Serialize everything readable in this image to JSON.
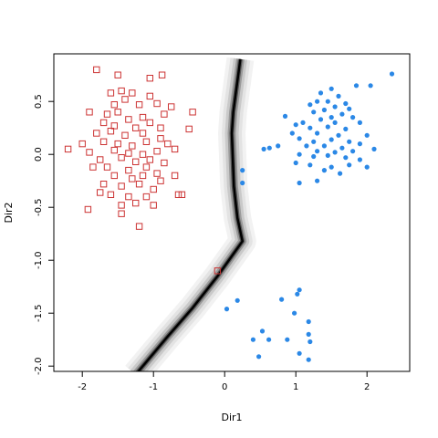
{
  "chart_data": {
    "type": "scatter",
    "xlabel": "Dir1",
    "ylabel": "Dir2",
    "xlim": [
      -2.4,
      2.6
    ],
    "ylim": [
      -2.05,
      0.95
    ],
    "x_ticks": [
      -2,
      -1,
      0,
      1,
      2
    ],
    "x_tick_labels": [
      "-2",
      "-1",
      "0",
      "1",
      "2"
    ],
    "y_ticks": [
      -2.0,
      -1.5,
      -1.0,
      -0.5,
      0.0,
      0.5
    ],
    "y_tick_labels": [
      "-2.0",
      "-1.5",
      "-1.0",
      "-0.5",
      "0.0",
      "0.5"
    ],
    "grid": false,
    "colors": {
      "class_a": "#cc3333",
      "class_b": "#2b88e6",
      "boundary": "#000000"
    },
    "boundary": [
      [
        0.22,
        0.9
      ],
      [
        0.12,
        0.4
      ],
      [
        0.1,
        0.2
      ],
      [
        0.13,
        -0.3
      ],
      [
        0.18,
        -0.6
      ],
      [
        0.25,
        -0.82
      ],
      [
        -0.1,
        -1.15
      ],
      [
        -0.45,
        -1.45
      ],
      [
        -0.8,
        -1.72
      ],
      [
        -1.05,
        -1.92
      ],
      [
        -1.25,
        -2.08
      ]
    ],
    "series": [
      {
        "marker": "open-square",
        "color": "#cc3333",
        "points": [
          [
            -1.8,
            0.8
          ],
          [
            -1.5,
            0.75
          ],
          [
            -1.05,
            0.72
          ],
          [
            -0.88,
            0.75
          ],
          [
            -1.9,
            0.4
          ],
          [
            -1.6,
            0.58
          ],
          [
            -1.45,
            0.6
          ],
          [
            -1.3,
            0.58
          ],
          [
            -1.05,
            0.55
          ],
          [
            -1.4,
            0.52
          ],
          [
            -1.55,
            0.47
          ],
          [
            -1.2,
            0.47
          ],
          [
            -0.95,
            0.48
          ],
          [
            -0.75,
            0.45
          ],
          [
            -1.65,
            0.38
          ],
          [
            -1.5,
            0.4
          ],
          [
            -1.35,
            0.33
          ],
          [
            -1.15,
            0.35
          ],
          [
            -0.85,
            0.38
          ],
          [
            -0.45,
            0.4
          ],
          [
            -1.7,
            0.3
          ],
          [
            -1.55,
            0.27
          ],
          [
            -1.25,
            0.25
          ],
          [
            -1.05,
            0.3
          ],
          [
            -0.9,
            0.25
          ],
          [
            -1.8,
            0.2
          ],
          [
            -1.6,
            0.22
          ],
          [
            -1.4,
            0.18
          ],
          [
            -1.15,
            0.2
          ],
          [
            -0.9,
            0.15
          ],
          [
            -0.5,
            0.24
          ],
          [
            -2.0,
            0.1
          ],
          [
            -1.7,
            0.12
          ],
          [
            -1.5,
            0.1
          ],
          [
            -1.3,
            0.08
          ],
          [
            -1.1,
            0.12
          ],
          [
            -0.8,
            0.1
          ],
          [
            -2.2,
            0.05
          ],
          [
            -1.9,
            0.02
          ],
          [
            -1.55,
            0.04
          ],
          [
            -1.35,
            0.01
          ],
          [
            -1.15,
            0.0
          ],
          [
            -0.95,
            0.03
          ],
          [
            -0.7,
            0.05
          ],
          [
            -1.75,
            -0.05
          ],
          [
            -1.45,
            -0.03
          ],
          [
            -1.25,
            -0.07
          ],
          [
            -1.05,
            -0.05
          ],
          [
            -0.85,
            -0.08
          ],
          [
            -1.65,
            -0.12
          ],
          [
            -1.35,
            -0.15
          ],
          [
            -1.1,
            -0.12
          ],
          [
            -0.95,
            -0.18
          ],
          [
            -1.85,
            -0.12
          ],
          [
            -1.55,
            -0.2
          ],
          [
            -1.3,
            -0.23
          ],
          [
            -1.15,
            -0.2
          ],
          [
            -0.9,
            -0.25
          ],
          [
            -0.7,
            -0.2
          ],
          [
            -1.7,
            -0.28
          ],
          [
            -1.45,
            -0.3
          ],
          [
            -1.2,
            -0.28
          ],
          [
            -1.0,
            -0.33
          ],
          [
            -0.65,
            -0.38
          ],
          [
            -1.75,
            -0.36
          ],
          [
            -1.6,
            -0.38
          ],
          [
            -1.35,
            -0.4
          ],
          [
            -1.1,
            -0.4
          ],
          [
            -0.6,
            -0.38
          ],
          [
            -1.45,
            -0.48
          ],
          [
            -1.25,
            -0.46
          ],
          [
            -1.0,
            -0.48
          ],
          [
            -1.92,
            -0.52
          ],
          [
            -1.45,
            -0.56
          ],
          [
            -1.2,
            -0.68
          ],
          [
            -0.1,
            -1.1
          ]
        ]
      },
      {
        "marker": "filled-circle",
        "color": "#2b88e6",
        "points": [
          [
            2.35,
            0.76
          ],
          [
            1.85,
            0.65
          ],
          [
            2.05,
            0.65
          ],
          [
            1.5,
            0.62
          ],
          [
            1.35,
            0.58
          ],
          [
            1.6,
            0.55
          ],
          [
            1.3,
            0.5
          ],
          [
            1.45,
            0.5
          ],
          [
            1.7,
            0.48
          ],
          [
            1.2,
            0.47
          ],
          [
            1.55,
            0.45
          ],
          [
            1.75,
            0.43
          ],
          [
            1.4,
            0.42
          ],
          [
            1.25,
            0.4
          ],
          [
            1.65,
            0.38
          ],
          [
            1.5,
            0.35
          ],
          [
            1.35,
            0.33
          ],
          [
            1.8,
            0.35
          ],
          [
            0.85,
            0.36
          ],
          [
            1.1,
            0.3
          ],
          [
            1.55,
            0.3
          ],
          [
            1.9,
            0.3
          ],
          [
            1.0,
            0.28
          ],
          [
            1.2,
            0.25
          ],
          [
            1.45,
            0.26
          ],
          [
            1.7,
            0.24
          ],
          [
            0.95,
            0.2
          ],
          [
            1.3,
            0.2
          ],
          [
            1.6,
            0.18
          ],
          [
            2.0,
            0.18
          ],
          [
            1.05,
            0.15
          ],
          [
            1.25,
            0.12
          ],
          [
            1.5,
            0.14
          ],
          [
            1.75,
            0.12
          ],
          [
            1.9,
            0.1
          ],
          [
            1.15,
            0.08
          ],
          [
            1.4,
            0.08
          ],
          [
            1.65,
            0.06
          ],
          [
            0.75,
            0.08
          ],
          [
            1.3,
            0.03
          ],
          [
            1.55,
            0.02
          ],
          [
            1.8,
            0.03
          ],
          [
            2.1,
            0.05
          ],
          [
            0.55,
            0.05
          ],
          [
            0.63,
            0.06
          ],
          [
            1.05,
            0.0
          ],
          [
            1.25,
            -0.02
          ],
          [
            1.45,
            -0.01
          ],
          [
            1.7,
            -0.03
          ],
          [
            1.9,
            -0.05
          ],
          [
            1.0,
            -0.08
          ],
          [
            1.2,
            -0.1
          ],
          [
            1.5,
            -0.12
          ],
          [
            1.75,
            -0.1
          ],
          [
            2.0,
            -0.12
          ],
          [
            1.4,
            -0.15
          ],
          [
            1.62,
            -0.18
          ],
          [
            0.25,
            -0.15
          ],
          [
            1.05,
            -0.27
          ],
          [
            1.3,
            -0.25
          ],
          [
            0.25,
            -0.27
          ],
          [
            1.05,
            -1.28
          ],
          [
            1.02,
            -1.32
          ],
          [
            0.8,
            -1.37
          ],
          [
            0.18,
            -1.38
          ],
          [
            0.03,
            -1.46
          ],
          [
            0.98,
            -1.5
          ],
          [
            1.18,
            -1.58
          ],
          [
            0.53,
            -1.67
          ],
          [
            1.18,
            -1.7
          ],
          [
            0.4,
            -1.75
          ],
          [
            0.62,
            -1.75
          ],
          [
            0.88,
            -1.75
          ],
          [
            1.2,
            -1.77
          ],
          [
            1.05,
            -1.88
          ],
          [
            0.48,
            -1.91
          ],
          [
            1.18,
            -1.94
          ]
        ]
      }
    ]
  }
}
